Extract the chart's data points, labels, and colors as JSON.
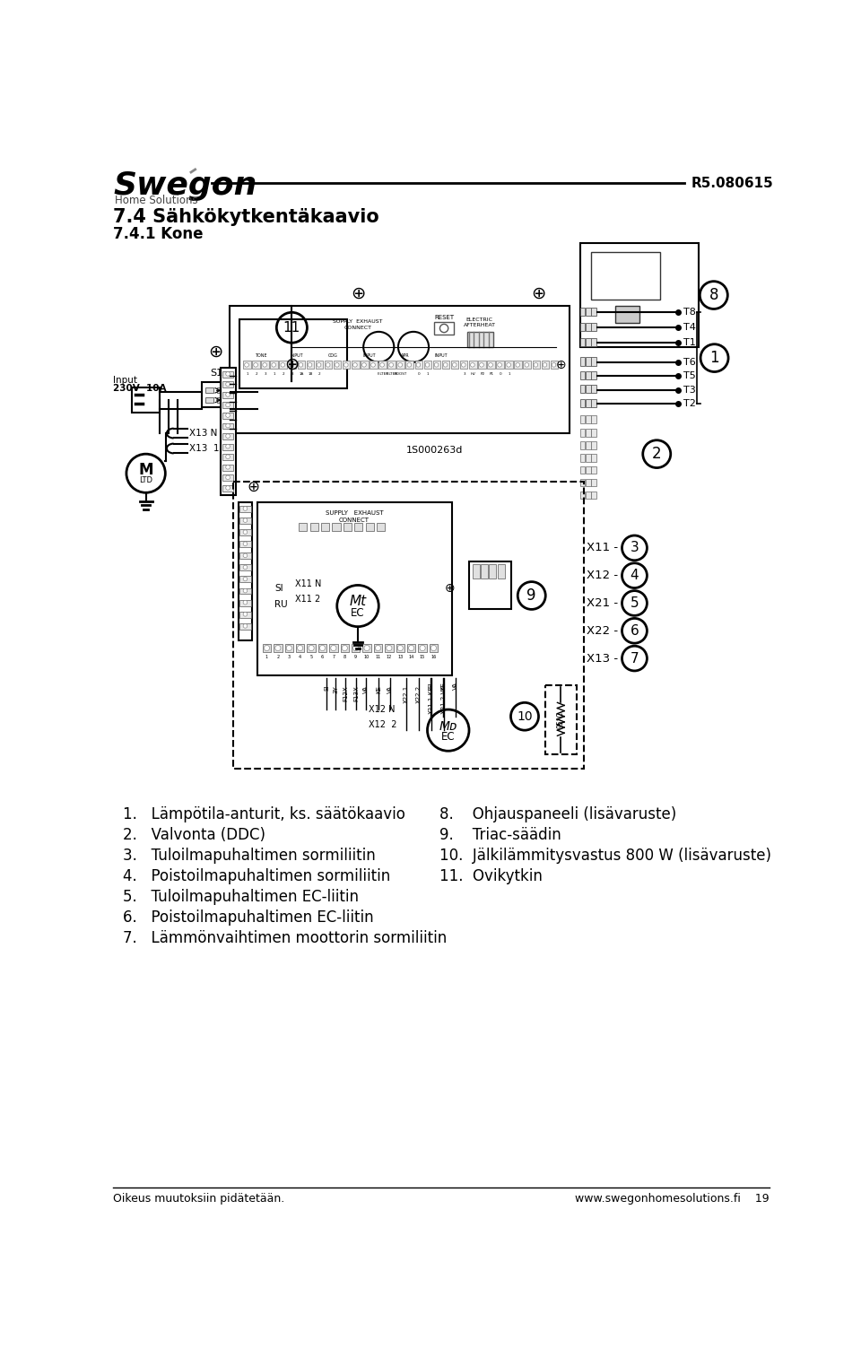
{
  "title_main": "7.4 Sähkökytkentäkaavio",
  "title_sub": "7.4.1 Kone",
  "version": "R5.080615",
  "footer_left": "Oikeus muutoksiin pidätetään.",
  "footer_right": "www.swegonhomesolutions.fi    19",
  "bg_color": "#ffffff",
  "text_color": "#000000",
  "items_left": [
    "1.   Lämpötila-anturit, ks. säätökaavio",
    "2.   Valvonta (DDC)",
    "3.   Tuloilmapuhaltimen sormiliitin",
    "4.   Poistoilmapuhaltimen sormiliitin",
    "5.   Tuloilmapuhaltimen EC-liitin",
    "6.   Poistoilmapuhaltimen EC-liitin",
    "7.   Lämmönvaihtimen moottorin sormiliitin"
  ],
  "items_right": [
    "8.    Ohjauspaneeli (lisävaruste)",
    "9.    Triac-säädin",
    "10.  Jälkilämmitysvastus 800 W (lisävaruste)",
    "11.  Ovikytkin"
  ],
  "diagram_label": "1S000263d",
  "t_labels": [
    "T8",
    "T4",
    "T1",
    "T6",
    "T5",
    "T3",
    "T2"
  ],
  "x_labels": [
    "X11 -",
    "X12 -",
    "X21 -",
    "X22 -",
    "X13 -"
  ],
  "x_numbers": [
    "3",
    "4",
    "5",
    "6",
    "7"
  ]
}
